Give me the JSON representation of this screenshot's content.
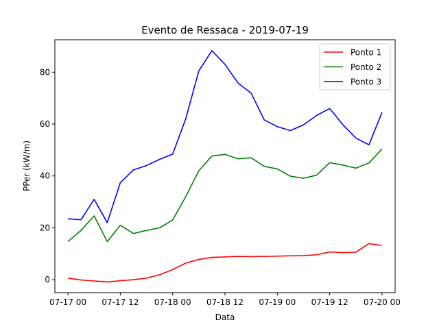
{
  "chart_data": {
    "type": "line",
    "title": "Evento de Ressaca - 2019-07-19",
    "xlabel": "Data",
    "ylabel": "PPer (kW/m)",
    "x_ticks": [
      "07-17 00",
      "07-17 12",
      "07-18 00",
      "07-18 12",
      "07-19 00",
      "07-19 12",
      "07-20 00"
    ],
    "x_range": [
      "07-16 21:00",
      "07-20 03:00"
    ],
    "ylim": [
      -5,
      92.5
    ],
    "y_ticks": [
      0,
      20,
      40,
      60,
      80
    ],
    "legend_position": "top-right",
    "grid": false,
    "x": [
      "07-17 00:00",
      "07-17 03:00",
      "07-17 06:00",
      "07-17 09:00",
      "07-17 12:00",
      "07-17 15:00",
      "07-17 18:00",
      "07-17 21:00",
      "07-18 00:00",
      "07-18 03:00",
      "07-18 06:00",
      "07-18 09:00",
      "07-18 12:00",
      "07-18 15:00",
      "07-18 18:00",
      "07-18 21:00",
      "07-19 00:00",
      "07-19 03:00",
      "07-19 06:00",
      "07-19 09:00",
      "07-19 12:00",
      "07-19 15:00",
      "07-19 18:00",
      "07-19 21:00",
      "07-20 00:00"
    ],
    "series": [
      {
        "name": "Ponto 1",
        "color": "#ff0000",
        "values": [
          0.6,
          -0.1,
          -0.5,
          -0.9,
          -0.4,
          0.0,
          0.6,
          1.9,
          3.9,
          6.4,
          7.8,
          8.6,
          8.8,
          9.0,
          8.9,
          9.0,
          9.1,
          9.2,
          9.3,
          9.6,
          10.7,
          10.4,
          10.6,
          13.9,
          13.2
        ]
      },
      {
        "name": "Ponto 2",
        "color": "#008000",
        "values": [
          14.7,
          19.0,
          24.6,
          14.7,
          21.0,
          17.8,
          19.0,
          20.0,
          23.0,
          32.0,
          42.0,
          47.7,
          48.3,
          46.6,
          47.0,
          43.7,
          42.7,
          39.9,
          39.1,
          40.3,
          45.1,
          44.2,
          43.0,
          45.0,
          50.4
        ]
      },
      {
        "name": "Ponto 3",
        "color": "#0000ff",
        "values": [
          23.5,
          23.1,
          31.0,
          22.0,
          37.4,
          42.3,
          44.0,
          46.4,
          48.4,
          62.0,
          80.5,
          88.3,
          83.0,
          75.8,
          71.9,
          61.6,
          59.0,
          57.5,
          59.7,
          63.3,
          66.0,
          59.8,
          54.6,
          52.0,
          64.5
        ]
      }
    ]
  }
}
